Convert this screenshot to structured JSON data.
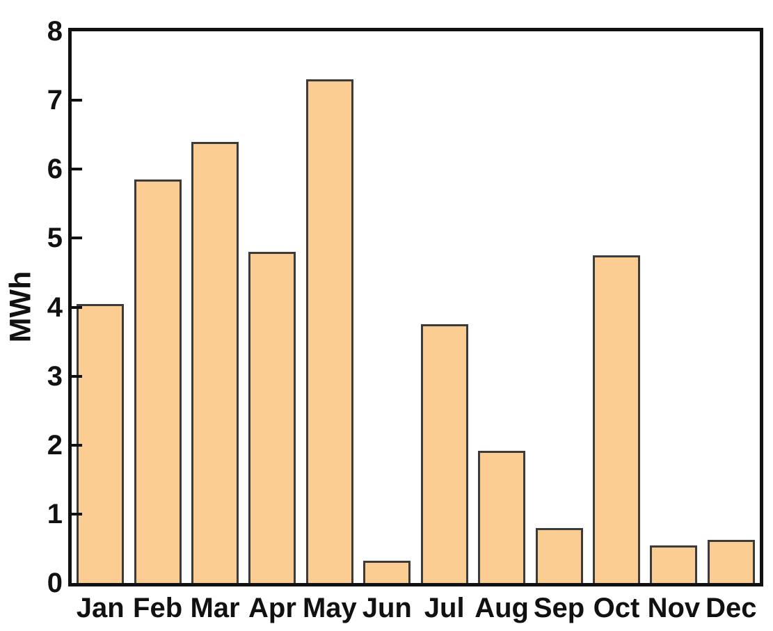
{
  "figure": {
    "background": "#ffffff"
  },
  "chart_data": {
    "type": "bar",
    "title": "",
    "xlabel": "",
    "ylabel": "MWh",
    "categories": [
      "Jan",
      "Feb",
      "Mar",
      "Apr",
      "May",
      "Jun",
      "Jul",
      "Aug",
      "Sep",
      "Oct",
      "Nov",
      "Dec"
    ],
    "values": [
      4.05,
      5.85,
      6.4,
      4.8,
      7.3,
      0.32,
      3.75,
      1.92,
      0.8,
      4.75,
      0.54,
      0.63
    ],
    "ylim": [
      0,
      8
    ],
    "yticks": [
      0,
      1,
      2,
      3,
      4,
      5,
      6,
      7,
      8
    ],
    "grid": false,
    "legend": false,
    "bar_fill": "#fbcd92",
    "bar_border": "#3b3b3b",
    "axis_color": "#111111",
    "text_color": "#111111"
  }
}
